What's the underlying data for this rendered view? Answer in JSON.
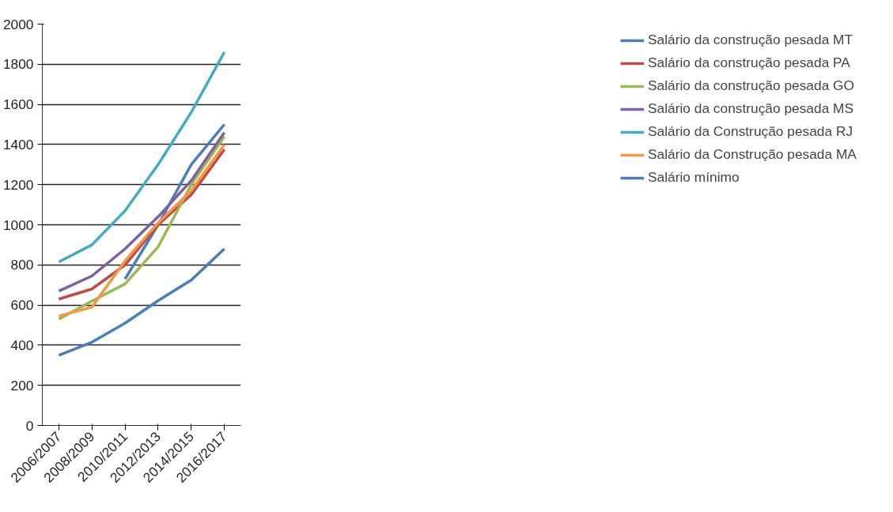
{
  "chart_data": {
    "type": "line",
    "categories": [
      "2006/2007",
      "2008/2009",
      "2010/2011",
      "2012/2013",
      "2014/2015",
      "2016/2017"
    ],
    "ylim": [
      0,
      2000
    ],
    "yticks": [
      0,
      200,
      400,
      600,
      800,
      1000,
      1200,
      1400,
      1600,
      1800,
      2000
    ],
    "grid": "y",
    "legend": "right",
    "series": [
      {
        "name": "Salário da construção pesada MT",
        "color": "#4a7ebb",
        "values": [
          null,
          null,
          730,
          1000,
          1300,
          1500
        ]
      },
      {
        "name": "Salário da construção pesada PA",
        "color": "#be4b48",
        "values": [
          630,
          680,
          800,
          1000,
          1150,
          1375
        ]
      },
      {
        "name": "Salário da construção pesada GO",
        "color": "#98b954",
        "values": [
          530,
          620,
          705,
          890,
          1200,
          1440
        ]
      },
      {
        "name": "Salário da construção pesada MS",
        "color": "#7d60a0",
        "values": [
          670,
          745,
          880,
          1040,
          1220,
          1460
        ]
      },
      {
        "name": "Salário da Construção pesada RJ",
        "color": "#46aac5",
        "values": [
          815,
          900,
          1070,
          1300,
          1560,
          1860
        ]
      },
      {
        "name": "Salário da Construção pesada MA",
        "color": "#f79646",
        "values": [
          545,
          590,
          820,
          1010,
          1170,
          1400
        ]
      },
      {
        "name": "Salário mínimo",
        "color": "#4a7ebb",
        "values": [
          350,
          415,
          510,
          622,
          724,
          880
        ]
      }
    ]
  }
}
